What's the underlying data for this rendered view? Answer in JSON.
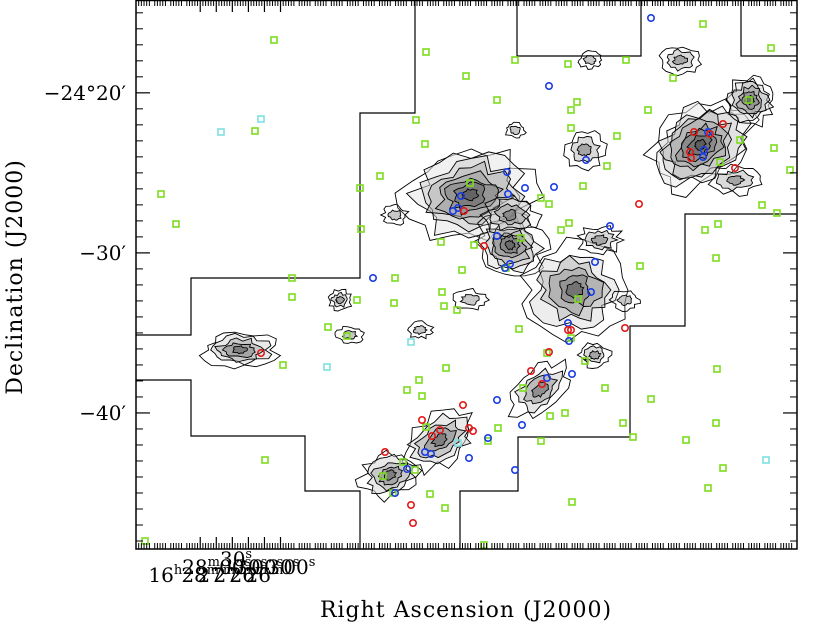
{
  "chart_data": {
    "type": "scatter",
    "title": "",
    "xlabel": "Right Ascension (J2000)",
    "ylabel": "Declination (J2000)",
    "xlim_ra_seconds": [
      58830,
      57595
    ],
    "ylim_dec_arcmin": [
      -48.5,
      -14.2
    ],
    "x_ticks": [
      {
        "ra_s": 58710,
        "label": "16h28m30s"
      },
      {
        "ra_s": 58680,
        "label": "28m00s"
      },
      {
        "ra_s": 58650,
        "label": "27m30s"
      },
      {
        "ra_s": 58620,
        "label": "27m00s"
      },
      {
        "ra_s": 58590,
        "label": "26m30s"
      },
      {
        "ra_s": 58560,
        "label": "26m00s"
      }
    ],
    "y_ticks": [
      {
        "dec_arcmin": -20,
        "label": "−24°20′"
      },
      {
        "dec_arcmin": -30,
        "label": "−30′"
      },
      {
        "dec_arcmin": -40,
        "label": "−40′"
      }
    ],
    "grid": false,
    "legend": "none",
    "series": [
      {
        "marker": "square",
        "color": "#7ddc1f",
        "points": [
          [
            274,
            40
          ],
          [
            426,
            52
          ],
          [
            466,
            76
          ],
          [
            515,
            60
          ],
          [
            568,
            64
          ],
          [
            626,
            60
          ],
          [
            703,
            24
          ],
          [
            771,
            48
          ],
          [
            749,
            100
          ],
          [
            673,
            78
          ],
          [
            577,
            102
          ],
          [
            571,
            110
          ],
          [
            497,
            100
          ],
          [
            416,
            120
          ],
          [
            425,
            144
          ],
          [
            255,
            131
          ],
          [
            161,
            194
          ],
          [
            176,
            224
          ],
          [
            360,
            188
          ],
          [
            361,
            229
          ],
          [
            380,
            176
          ],
          [
            470,
            183
          ],
          [
            549,
            204
          ],
          [
            583,
            186
          ],
          [
            607,
            166
          ],
          [
            617,
            136
          ],
          [
            571,
            128
          ],
          [
            648,
            110
          ],
          [
            720,
            162
          ],
          [
            740,
            140
          ],
          [
            774,
            148
          ],
          [
            790,
            170
          ],
          [
            777,
            213
          ],
          [
            762,
            205
          ],
          [
            718,
            224
          ],
          [
            705,
            230
          ],
          [
            716,
            258
          ],
          [
            640,
            266
          ],
          [
            561,
            230
          ],
          [
            541,
            198
          ],
          [
            569,
            223
          ],
          [
            521,
            238
          ],
          [
            441,
            242
          ],
          [
            474,
            245
          ],
          [
            462,
            270
          ],
          [
            506,
            268
          ],
          [
            442,
            292
          ],
          [
            444,
            306
          ],
          [
            457,
            310
          ],
          [
            395,
            278
          ],
          [
            394,
            303
          ],
          [
            292,
            278
          ],
          [
            292,
            297
          ],
          [
            328,
            327
          ],
          [
            347,
            336
          ],
          [
            357,
            300
          ],
          [
            519,
            329
          ],
          [
            578,
            299
          ],
          [
            571,
            338
          ],
          [
            547,
            353
          ],
          [
            585,
            361
          ],
          [
            605,
            388
          ],
          [
            623,
            423
          ],
          [
            633,
            437
          ],
          [
            651,
            399
          ],
          [
            717,
            369
          ],
          [
            686,
            440
          ],
          [
            723,
            468
          ],
          [
            708,
            488
          ],
          [
            716,
            423
          ],
          [
            565,
            413
          ],
          [
            541,
            441
          ],
          [
            523,
            388
          ],
          [
            550,
            416
          ],
          [
            498,
            428
          ],
          [
            488,
            441
          ],
          [
            407,
            390
          ],
          [
            419,
            380
          ],
          [
            422,
            396
          ],
          [
            426,
            427
          ],
          [
            403,
            462
          ],
          [
            415,
            470
          ],
          [
            383,
            476
          ],
          [
            393,
            493
          ],
          [
            430,
            494
          ],
          [
            445,
            508
          ],
          [
            484,
            545
          ],
          [
            572,
            502
          ],
          [
            265,
            460
          ],
          [
            283,
            365
          ],
          [
            145,
            541
          ],
          [
            446,
            368
          ]
        ]
      },
      {
        "marker": "square",
        "color": "#7fe0e0",
        "points": [
          [
            221,
            132
          ],
          [
            261,
            119
          ],
          [
            411,
            342
          ],
          [
            327,
            367
          ],
          [
            458,
            443
          ],
          [
            766,
            460
          ]
        ]
      },
      {
        "marker": "circle",
        "color": "#1a3de6",
        "points": [
          [
            651,
            18
          ],
          [
            549,
            86
          ],
          [
            586,
            160
          ],
          [
            507,
            172
          ],
          [
            461,
            196
          ],
          [
            453,
            211
          ],
          [
            458,
            208
          ],
          [
            508,
            194
          ],
          [
            525,
            188
          ],
          [
            497,
            236
          ],
          [
            505,
            268
          ],
          [
            510,
            264
          ],
          [
            554,
            187
          ],
          [
            595,
            262
          ],
          [
            610,
            226
          ],
          [
            591,
            292
          ],
          [
            568,
            323
          ],
          [
            569,
            341
          ],
          [
            572,
            374
          ],
          [
            547,
            378
          ],
          [
            522,
            425
          ],
          [
            497,
            400
          ],
          [
            488,
            438
          ],
          [
            469,
            458
          ],
          [
            515,
            470
          ],
          [
            431,
            454
          ],
          [
            407,
            469
          ],
          [
            425,
            452
          ],
          [
            395,
            493
          ],
          [
            373,
            278
          ],
          [
            704,
            150
          ],
          [
            703,
            157
          ],
          [
            708,
            132
          ]
        ]
      },
      {
        "marker": "circle",
        "color": "#e01a1a",
        "points": [
          [
            694,
            132
          ],
          [
            690,
            152
          ],
          [
            691,
            158
          ],
          [
            710,
            134
          ],
          [
            723,
            124
          ],
          [
            735,
            168
          ],
          [
            639,
            204
          ],
          [
            484,
            246
          ],
          [
            464,
            211
          ],
          [
            571,
            330
          ],
          [
            549,
            352
          ],
          [
            531,
            371
          ],
          [
            542,
            384
          ],
          [
            568,
            330
          ],
          [
            625,
            328
          ],
          [
            463,
            405
          ],
          [
            469,
            428
          ],
          [
            473,
            431
          ],
          [
            440,
            430
          ],
          [
            422,
            420
          ],
          [
            432,
            436
          ],
          [
            385,
            452
          ],
          [
            411,
            505
          ],
          [
            413,
            523
          ],
          [
            261,
            353
          ]
        ]
      }
    ]
  }
}
